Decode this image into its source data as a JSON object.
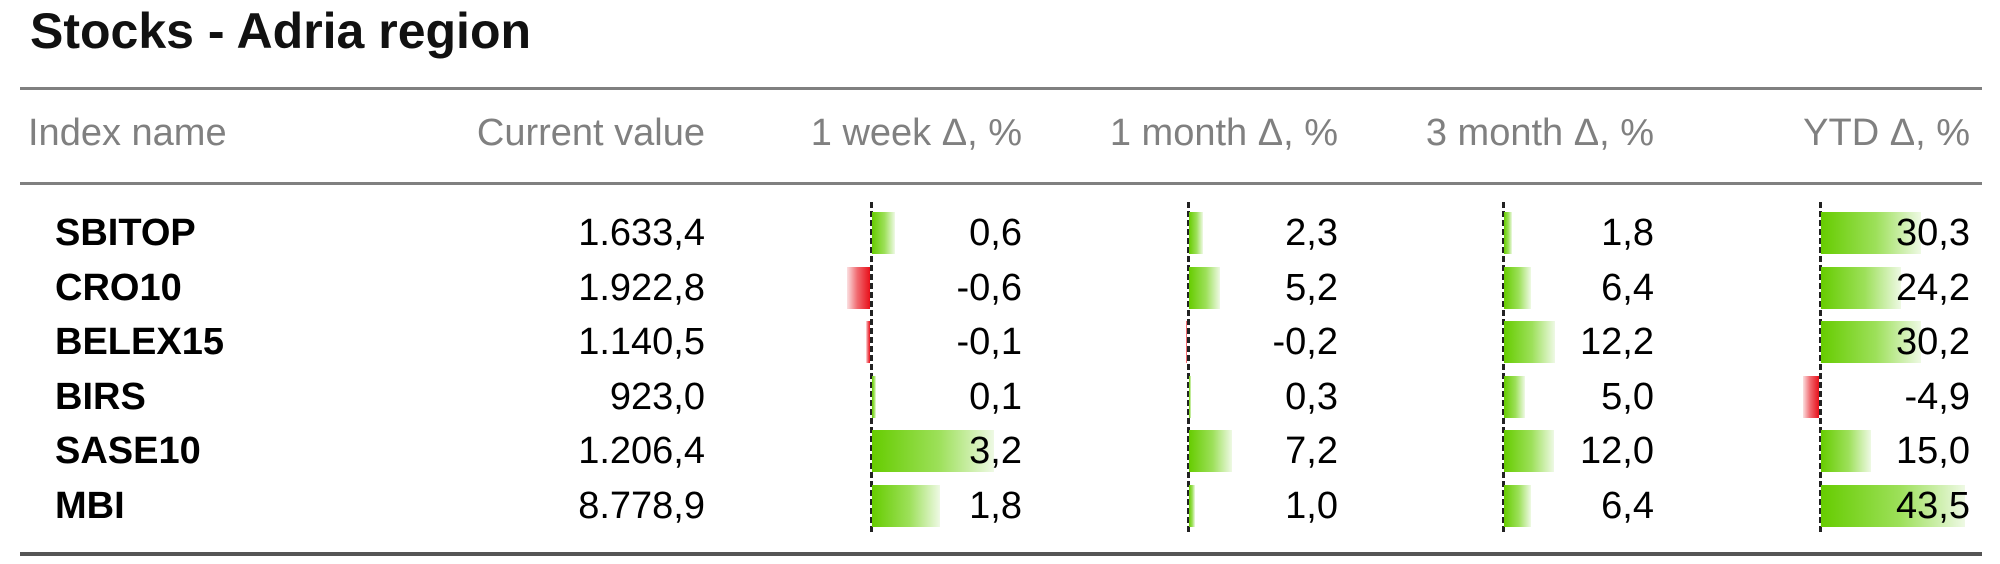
{
  "title": "Stocks - Adria region",
  "headers": {
    "name": "Index name",
    "value": "Current value",
    "w1": "1 week Δ, %",
    "m1": "1 month Δ, %",
    "m3": "3 month Δ, %",
    "ytd": "YTD Δ, %"
  },
  "rows": [
    {
      "name": "SBITOP",
      "value": "1.633,4",
      "w1": "0,6",
      "m1": "2,3",
      "m3": "1,8",
      "ytd": "30,3"
    },
    {
      "name": "CRO10",
      "value": "1.922,8",
      "w1": "-0,6",
      "m1": "5,2",
      "m3": "6,4",
      "ytd": "24,2"
    },
    {
      "name": "BELEX15",
      "value": "1.140,5",
      "w1": "-0,1",
      "m1": "-0,2",
      "m3": "12,2",
      "ytd": "30,2"
    },
    {
      "name": "BIRS",
      "value": "923,0",
      "w1": "0,1",
      "m1": "0,3",
      "m3": "5,0",
      "ytd": "-4,9"
    },
    {
      "name": "SASE10",
      "value": "1.206,4",
      "w1": "3,2",
      "m1": "7,2",
      "m3": "12,0",
      "ytd": "15,0"
    },
    {
      "name": "MBI",
      "value": "8.778,9",
      "w1": "1,8",
      "m1": "1,0",
      "m3": "6,4",
      "ytd": "43,5"
    }
  ],
  "colors": {
    "positive": "#66cc00",
    "negative": "#e8101a"
  },
  "chart_data": {
    "type": "table",
    "title": "Stocks - Adria region",
    "columns": [
      "Index name",
      "Current value",
      "1 week Δ, %",
      "1 month Δ, %",
      "3 month Δ, %",
      "YTD Δ, %"
    ],
    "categories": [
      "SBITOP",
      "CRO10",
      "BELEX15",
      "BIRS",
      "SASE10",
      "MBI"
    ],
    "current_value": [
      1633.4,
      1922.8,
      1140.5,
      923.0,
      1206.4,
      8778.9
    ],
    "series": [
      {
        "name": "1 week Δ, %",
        "values": [
          0.6,
          -0.6,
          -0.1,
          0.1,
          3.2,
          1.8
        ]
      },
      {
        "name": "1 month Δ, %",
        "values": [
          2.3,
          5.2,
          -0.2,
          0.3,
          7.2,
          1.0
        ]
      },
      {
        "name": "3 month Δ, %",
        "values": [
          1.8,
          6.4,
          12.2,
          5.0,
          12.0,
          6.4
        ]
      },
      {
        "name": "YTD Δ, %",
        "values": [
          30.3,
          24.2,
          30.2,
          -4.9,
          15.0,
          43.5
        ]
      }
    ]
  }
}
